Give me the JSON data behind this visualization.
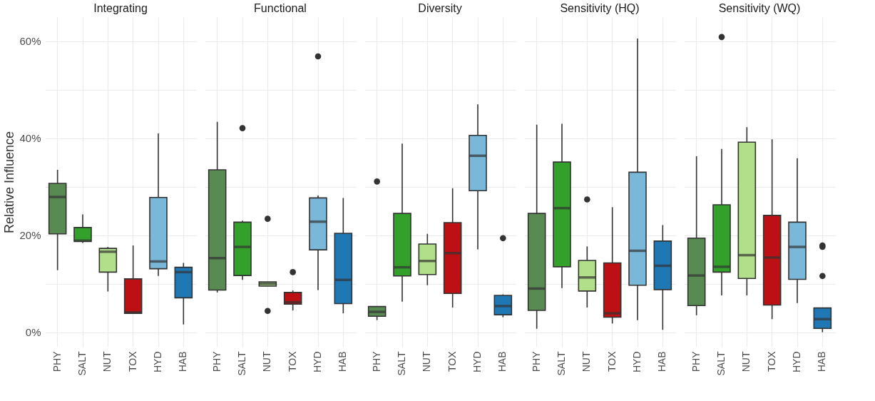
{
  "chart_data": [
    {
      "type": "box",
      "title": "Integrating",
      "ylabel": "Relative Influence",
      "categories": [
        "PHY",
        "SALT",
        "NUT",
        "TOX",
        "HYD",
        "HAB"
      ],
      "colors": [
        "#588b51",
        "#33a02c",
        "#b2df8a",
        "#bd1014",
        "#7ab8d9",
        "#1f78b4"
      ],
      "ylim": [
        -3,
        65
      ],
      "yticks": [
        {
          "value": 0,
          "label": "0%"
        },
        {
          "value": 10,
          "label": null
        },
        {
          "value": 20,
          "label": "20%"
        },
        {
          "value": 30,
          "label": null
        },
        {
          "value": 40,
          "label": "40%"
        },
        {
          "value": 50,
          "label": null
        },
        {
          "value": 60,
          "label": "60%"
        }
      ],
      "grid": true,
      "boxes": [
        {
          "low": 12.8,
          "q1": 20.3,
          "median": 27.9,
          "q3": 30.7,
          "high": 33.5
        },
        {
          "low": 18.4,
          "q1": 18.7,
          "median": 18.9,
          "q3": 21.6,
          "high": 24.3
        },
        {
          "low": 8.4,
          "q1": 12.4,
          "median": 16.6,
          "q3": 17.3,
          "high": 17.6
        },
        {
          "low": 3.9,
          "q1": 3.9,
          "median": 4.1,
          "q3": 11.0,
          "high": 17.9
        },
        {
          "low": 11.6,
          "q1": 13.1,
          "median": 14.6,
          "q3": 27.8,
          "high": 41.0
        },
        {
          "low": 1.6,
          "q1": 7.1,
          "median": 12.4,
          "q3": 13.4,
          "high": 14.3
        }
      ]
    },
    {
      "type": "box",
      "title": "Functional",
      "tick_labels": "x",
      "categories": [
        "PHY",
        "SALT",
        "NUT",
        "TOX",
        "HYD",
        "HAB"
      ],
      "colors": [
        "#588b51",
        "#33a02c",
        "#b2df8a",
        "#bd1014",
        "#7ab8d9",
        "#1f78b4"
      ],
      "ylim": [
        -3,
        65
      ],
      "yticks": [
        {
          "value": 0,
          "label": null
        },
        {
          "value": 10,
          "label": null
        },
        {
          "value": 20,
          "label": null
        },
        {
          "value": 30,
          "label": null
        },
        {
          "value": 40,
          "label": null
        },
        {
          "value": 50,
          "label": null
        },
        {
          "value": 60,
          "label": null
        }
      ],
      "grid": true,
      "boxes": [
        {
          "low": 8.2,
          "q1": 8.7,
          "median": 15.3,
          "q3": 33.5,
          "high": 43.4
        },
        {
          "low": 10.8,
          "q1": 11.7,
          "median": 17.6,
          "q3": 22.7,
          "high": 23.0,
          "outliers": [
            42.1
          ]
        },
        {
          "low": 9.5,
          "q1": 9.5,
          "median": 10.0,
          "q3": 10.4,
          "high": 10.4,
          "outliers": [
            23.4,
            4.4
          ]
        },
        {
          "low": 4.5,
          "q1": 5.8,
          "median": 6.2,
          "q3": 8.2,
          "high": 8.6,
          "outliers": [
            12.4
          ]
        },
        {
          "low": 8.7,
          "q1": 17.0,
          "median": 22.8,
          "q3": 27.7,
          "high": 28.2,
          "outliers": [
            56.9
          ]
        },
        {
          "low": 3.9,
          "q1": 5.9,
          "median": 10.8,
          "q3": 20.4,
          "high": 27.7
        }
      ]
    },
    {
      "type": "box",
      "title": "Diversity",
      "tick_labels": "x",
      "categories": [
        "PHY",
        "SALT",
        "NUT",
        "TOX",
        "HYD",
        "HAB"
      ],
      "colors": [
        "#588b51",
        "#33a02c",
        "#b2df8a",
        "#bd1014",
        "#7ab8d9",
        "#1f78b4"
      ],
      "ylim": [
        -3,
        65
      ],
      "yticks": [
        {
          "value": 0,
          "label": null
        },
        {
          "value": 10,
          "label": null
        },
        {
          "value": 20,
          "label": null
        },
        {
          "value": 30,
          "label": null
        },
        {
          "value": 40,
          "label": null
        },
        {
          "value": 50,
          "label": null
        },
        {
          "value": 60,
          "label": null
        }
      ],
      "grid": true,
      "boxes": [
        {
          "low": 2.5,
          "q1": 3.3,
          "median": 4.2,
          "q3": 5.3,
          "high": 5.4,
          "outliers": [
            31.1
          ]
        },
        {
          "low": 6.3,
          "q1": 11.6,
          "median": 13.4,
          "q3": 24.5,
          "high": 38.9
        },
        {
          "low": 9.7,
          "q1": 11.9,
          "median": 14.7,
          "q3": 18.2,
          "high": 20.3
        },
        {
          "low": 5.1,
          "q1": 8.0,
          "median": 16.3,
          "q3": 22.6,
          "high": 29.7
        },
        {
          "low": 17.1,
          "q1": 29.2,
          "median": 36.4,
          "q3": 40.6,
          "high": 47.0
        },
        {
          "low": 3.1,
          "q1": 3.6,
          "median": 5.4,
          "q3": 7.6,
          "high": 7.8,
          "outliers": [
            19.4
          ]
        }
      ]
    },
    {
      "type": "box",
      "title": "Sensitivity (HQ)",
      "tick_labels": "x",
      "categories": [
        "PHY",
        "SALT",
        "NUT",
        "TOX",
        "HYD",
        "HAB"
      ],
      "colors": [
        "#588b51",
        "#33a02c",
        "#b2df8a",
        "#bd1014",
        "#7ab8d9",
        "#1f78b4"
      ],
      "ylim": [
        -3,
        65
      ],
      "yticks": [
        {
          "value": 0,
          "label": null
        },
        {
          "value": 10,
          "label": null
        },
        {
          "value": 20,
          "label": null
        },
        {
          "value": 30,
          "label": null
        },
        {
          "value": 40,
          "label": null
        },
        {
          "value": 50,
          "label": null
        },
        {
          "value": 60,
          "label": null
        }
      ],
      "grid": true,
      "boxes": [
        {
          "low": 0.7,
          "q1": 4.5,
          "median": 9.0,
          "q3": 24.5,
          "high": 42.8
        },
        {
          "low": 9.1,
          "q1": 13.5,
          "median": 25.6,
          "q3": 35.1,
          "high": 43.0
        },
        {
          "low": 5.1,
          "q1": 8.5,
          "median": 11.3,
          "q3": 14.8,
          "high": 17.7,
          "outliers": [
            27.4
          ]
        },
        {
          "low": 1.8,
          "q1": 3.1,
          "median": 3.9,
          "q3": 14.3,
          "high": 25.8
        },
        {
          "low": 2.5,
          "q1": 9.7,
          "median": 16.8,
          "q3": 33.0,
          "high": 60.6
        },
        {
          "low": 0.5,
          "q1": 8.8,
          "median": 13.7,
          "q3": 18.8,
          "high": 22.1
        }
      ]
    },
    {
      "type": "box",
      "title": "Sensitivity (WQ)",
      "tick_labels": "x",
      "categories": [
        "PHY",
        "SALT",
        "NUT",
        "TOX",
        "HYD",
        "HAB"
      ],
      "colors": [
        "#588b51",
        "#33a02c",
        "#b2df8a",
        "#bd1014",
        "#7ab8d9",
        "#1f78b4"
      ],
      "ylim": [
        -3,
        65
      ],
      "yticks": [
        {
          "value": 0,
          "label": null
        },
        {
          "value": 10,
          "label": null
        },
        {
          "value": 20,
          "label": null
        },
        {
          "value": 30,
          "label": null
        },
        {
          "value": 40,
          "label": null
        },
        {
          "value": 50,
          "label": null
        },
        {
          "value": 60,
          "label": null
        }
      ],
      "grid": true,
      "boxes": [
        {
          "low": 3.5,
          "q1": 5.5,
          "median": 11.7,
          "q3": 19.4,
          "high": 36.3
        },
        {
          "low": 7.6,
          "q1": 12.4,
          "median": 13.5,
          "q3": 26.3,
          "high": 37.8,
          "outliers": [
            60.9
          ]
        },
        {
          "low": 7.6,
          "q1": 11.1,
          "median": 15.9,
          "q3": 39.2,
          "high": 42.3
        },
        {
          "low": 2.7,
          "q1": 5.6,
          "median": 15.4,
          "q3": 24.1,
          "high": 39.8
        },
        {
          "low": 6.0,
          "q1": 10.9,
          "median": 17.6,
          "q3": 22.7,
          "high": 35.9
        },
        {
          "low": 0.0,
          "q1": 0.8,
          "median": 2.7,
          "q3": 5.0,
          "high": 5.0,
          "outliers": [
            17.9,
            17.6,
            11.6
          ]
        }
      ]
    }
  ]
}
